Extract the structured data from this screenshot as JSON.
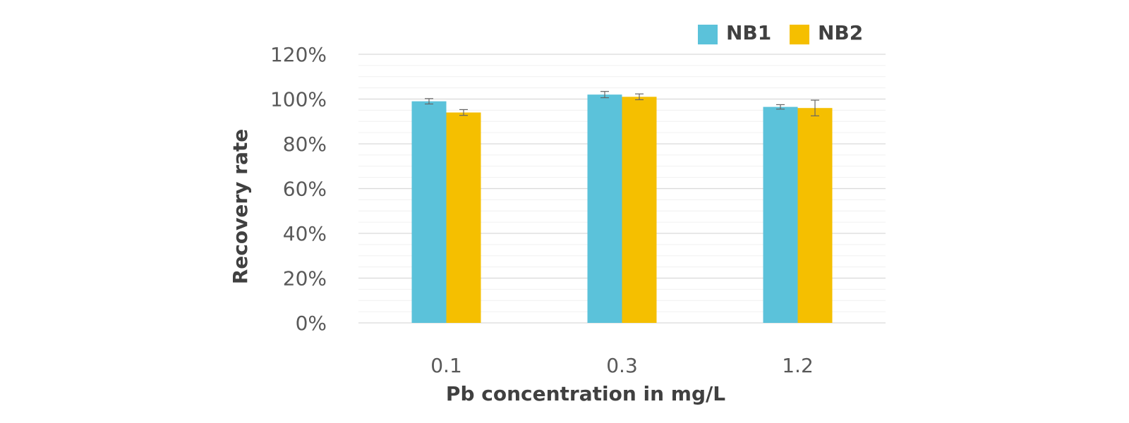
{
  "chart_data": {
    "type": "bar",
    "title": "",
    "xlabel": "Pb concentration in mg/L",
    "ylabel": "Recovery rate",
    "categories": [
      "0.1",
      "0.3",
      "1.2"
    ],
    "series": [
      {
        "name": "NB1",
        "color": "#5BC2DA",
        "values": [
          99,
          102,
          96.5
        ],
        "errors": [
          1.2,
          1.4,
          1.0
        ]
      },
      {
        "name": "NB2",
        "color": "#F5BF00",
        "values": [
          94,
          101,
          96
        ],
        "errors": [
          1.3,
          1.3,
          3.5
        ]
      }
    ],
    "ylim": [
      0,
      120
    ],
    "yticks": [
      0,
      20,
      40,
      60,
      80,
      100,
      120
    ],
    "ytick_labels": [
      "0%",
      "20%",
      "40%",
      "60%",
      "80%",
      "100%",
      "120%"
    ],
    "grid": true,
    "legend_position": "top-right"
  }
}
